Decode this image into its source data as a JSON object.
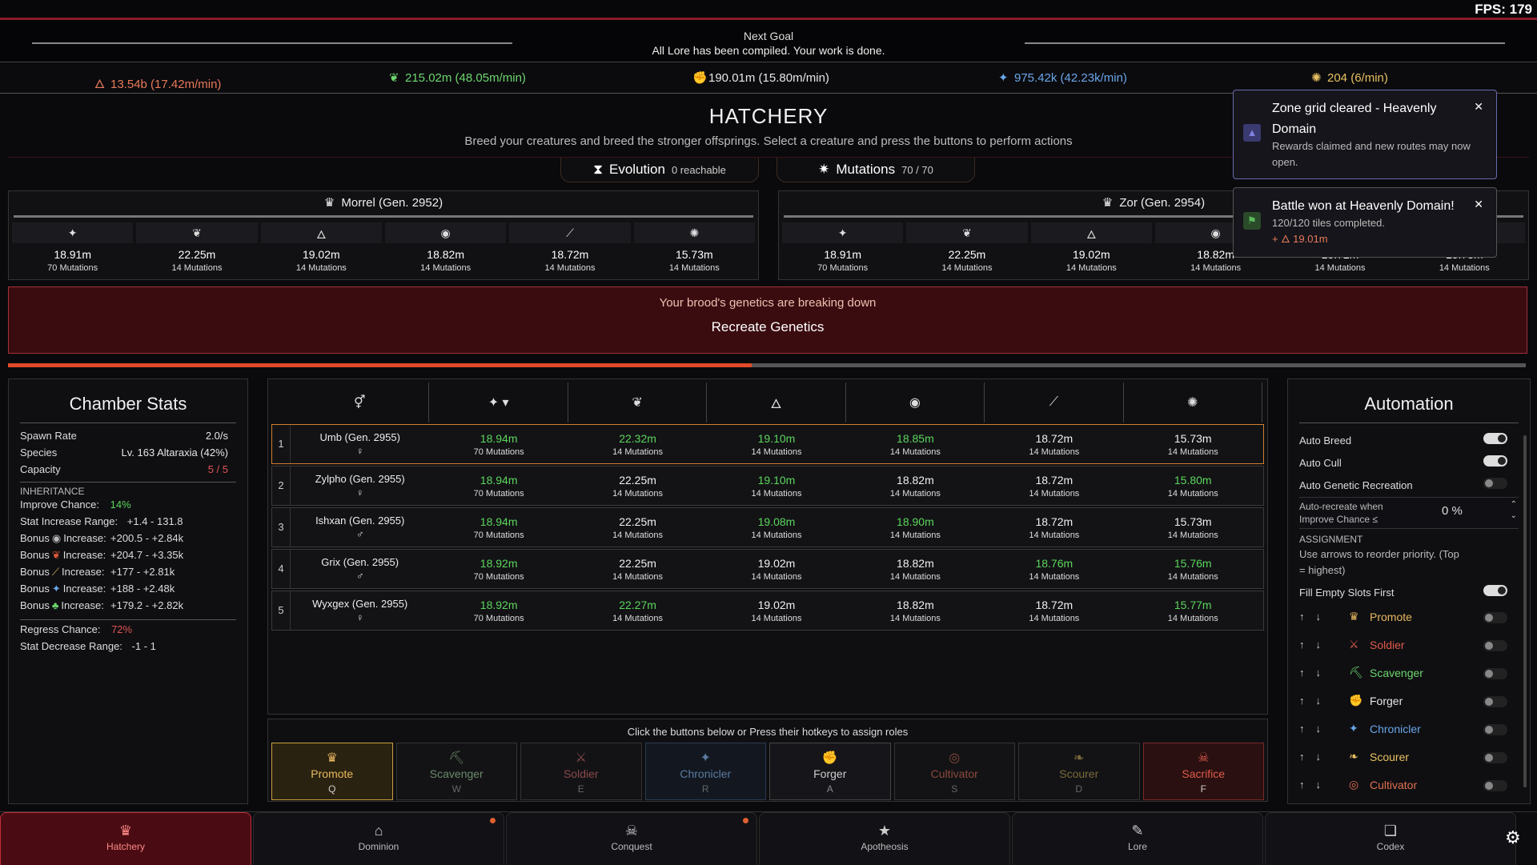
{
  "fps": "FPS: 179",
  "goal": {
    "label": "Next Goal",
    "text": "All Lore has been compiled. Your work is done."
  },
  "resources": [
    {
      "icon": "flame-icon",
      "glyph": "🜂",
      "text": "13.54b (17.42m/min)",
      "color": "#e87a5a"
    },
    {
      "icon": "leaf-icon",
      "glyph": "❦",
      "text": "215.02m (48.05m/min)",
      "color": "#6ed66e"
    },
    {
      "icon": "fist-icon",
      "glyph": "✊",
      "text": "190.01m (15.80m/min)",
      "color": "#e6e6e6"
    },
    {
      "icon": "scroll-icon",
      "glyph": "✦",
      "text": "975.42k (42.23k/min)",
      "color": "#6aa6e8"
    },
    {
      "icon": "gear-coin-icon",
      "glyph": "✺",
      "text": "204 (6/min)",
      "color": "#e8c060"
    }
  ],
  "hatchery": {
    "title": "HATCHERY",
    "subtitle": "Breed your creatures and breed the stronger offsprings. Select a creature and press the buttons to perform actions"
  },
  "tabs": [
    {
      "label": "Evolution",
      "sub": "0 reachable"
    },
    {
      "label": "Mutations",
      "sub": "70 / 70"
    }
  ],
  "parents": [
    {
      "name": "Morrel (Gen. 2952)",
      "stats": [
        {
          "icon": "sparkle-icon",
          "v": "18.91m",
          "m": "70 Mutations"
        },
        {
          "icon": "wings-icon",
          "v": "22.25m",
          "m": "14 Mutations"
        },
        {
          "icon": "flame-icon",
          "v": "19.02m",
          "m": "14 Mutations"
        },
        {
          "icon": "shell-icon",
          "v": "18.82m",
          "m": "14 Mutations"
        },
        {
          "icon": "claw-icon",
          "v": "18.72m",
          "m": "14 Mutations"
        },
        {
          "icon": "brain-icon",
          "v": "15.73m",
          "m": "14 Mutations"
        }
      ]
    },
    {
      "name": "Zor (Gen. 2954)",
      "stats": [
        {
          "icon": "sparkle-icon",
          "v": "18.91m",
          "m": "70 Mutations"
        },
        {
          "icon": "wings-icon",
          "v": "22.25m",
          "m": "14 Mutations"
        },
        {
          "icon": "flame-icon",
          "v": "19.02m",
          "m": "14 Mutations"
        },
        {
          "icon": "shell-icon",
          "v": "18.82m",
          "m": "14 Mutations"
        },
        {
          "icon": "claw-icon",
          "v": "18.72m",
          "m": "14 Mutations"
        },
        {
          "icon": "brain-icon",
          "v": "15.73m",
          "m": "14 Mutations"
        }
      ]
    }
  ],
  "alert": {
    "text": "Your brood's genetics are breaking down",
    "button": "Recreate Genetics"
  },
  "breed_progress": 0.49,
  "chamber": {
    "title": "Chamber Stats",
    "rows": [
      {
        "l": "Spawn Rate",
        "r": "2.0/s",
        "color": "#e6e6e6"
      },
      {
        "l": "Species",
        "r": "Lv. 163 Altaraxia (42%)",
        "color": "#e6e6e6"
      },
      {
        "l": "Capacity",
        "r": "5 / 5",
        "color": "#e05555"
      }
    ],
    "inheritance_label": "INHERITANCE",
    "improve": {
      "l": "Improve Chance:",
      "r": "14%"
    },
    "stat_inc": {
      "l": "Stat Increase Range:",
      "r": "+1.4 - 131.8"
    },
    "bonuses": [
      {
        "l": "Bonus",
        "icon": "shell-icon",
        "glyph": "◉",
        "l2": "Increase:",
        "r": "+200.5 - +2.84k",
        "color": "#bbb"
      },
      {
        "l": "Bonus",
        "icon": "wings-icon",
        "glyph": "❦",
        "l2": "Increase:",
        "r": "+204.7 - +3.35k",
        "color": "#e05a3a"
      },
      {
        "l": "Bonus",
        "icon": "claw-icon",
        "glyph": "⟋",
        "l2": "Increase:",
        "r": "+177 - +2.81k",
        "color": "#e0b060"
      },
      {
        "l": "Bonus",
        "icon": "scroll-icon",
        "glyph": "✦",
        "l2": "Increase:",
        "r": "+188 - +2.48k",
        "color": "#6aa6e8"
      },
      {
        "l": "Bonus",
        "icon": "sprout-icon",
        "glyph": "♣",
        "l2": "Increase:",
        "r": "+179.2 - +2.82k",
        "color": "#6ed66e"
      }
    ],
    "regress": {
      "l": "Regress Chance:",
      "r": "72%"
    },
    "stat_dec": {
      "l": "Stat Decrease Range:",
      "r": "-1 - 1"
    }
  },
  "table": {
    "headers": [
      {
        "icon": "gender-icon",
        "glyph": "⚥"
      },
      {
        "icon": "sparkle-icon",
        "glyph": "✦ ▾"
      },
      {
        "icon": "wings-icon",
        "glyph": "❦"
      },
      {
        "icon": "flame-icon",
        "glyph": "🜂"
      },
      {
        "icon": "shell-icon",
        "glyph": "◉"
      },
      {
        "icon": "claw-icon",
        "glyph": "⟋"
      },
      {
        "icon": "brain-icon",
        "glyph": "✺"
      }
    ],
    "rows": [
      {
        "idx": "1",
        "name": "Umb (Gen. 2955)",
        "sex": "♀",
        "cells": [
          {
            "v": "18.94m",
            "m": "70 Mutations",
            "g": true
          },
          {
            "v": "22.32m",
            "m": "14 Mutations",
            "g": true
          },
          {
            "v": "19.10m",
            "m": "14 Mutations",
            "g": true
          },
          {
            "v": "18.85m",
            "m": "14 Mutations",
            "g": true
          },
          {
            "v": "18.72m",
            "m": "14 Mutations",
            "g": false
          },
          {
            "v": "15.73m",
            "m": "14 Mutations",
            "g": false
          }
        ]
      },
      {
        "idx": "2",
        "name": "Zylpho (Gen. 2955)",
        "sex": "♀",
        "cells": [
          {
            "v": "18.94m",
            "m": "70 Mutations",
            "g": true
          },
          {
            "v": "22.25m",
            "m": "14 Mutations",
            "g": false
          },
          {
            "v": "19.10m",
            "m": "14 Mutations",
            "g": true
          },
          {
            "v": "18.82m",
            "m": "14 Mutations",
            "g": false
          },
          {
            "v": "18.72m",
            "m": "14 Mutations",
            "g": false
          },
          {
            "v": "15.80m",
            "m": "14 Mutations",
            "g": true
          }
        ]
      },
      {
        "idx": "3",
        "name": "Ishxan (Gen. 2955)",
        "sex": "♂",
        "cells": [
          {
            "v": "18.94m",
            "m": "70 Mutations",
            "g": true
          },
          {
            "v": "22.25m",
            "m": "14 Mutations",
            "g": false
          },
          {
            "v": "19.08m",
            "m": "14 Mutations",
            "g": true
          },
          {
            "v": "18.90m",
            "m": "14 Mutations",
            "g": true
          },
          {
            "v": "18.72m",
            "m": "14 Mutations",
            "g": false
          },
          {
            "v": "15.73m",
            "m": "14 Mutations",
            "g": false
          }
        ]
      },
      {
        "idx": "4",
        "name": "Grix (Gen. 2955)",
        "sex": "♂",
        "cells": [
          {
            "v": "18.92m",
            "m": "70 Mutations",
            "g": true
          },
          {
            "v": "22.25m",
            "m": "14 Mutations",
            "g": false
          },
          {
            "v": "19.02m",
            "m": "14 Mutations",
            "g": false
          },
          {
            "v": "18.82m",
            "m": "14 Mutations",
            "g": false
          },
          {
            "v": "18.76m",
            "m": "14 Mutations",
            "g": true
          },
          {
            "v": "15.76m",
            "m": "14 Mutations",
            "g": true
          }
        ]
      },
      {
        "idx": "5",
        "name": "Wyxgex (Gen. 2955)",
        "sex": "♀",
        "cells": [
          {
            "v": "18.92m",
            "m": "70 Mutations",
            "g": true
          },
          {
            "v": "22.27m",
            "m": "14 Mutations",
            "g": true
          },
          {
            "v": "19.02m",
            "m": "14 Mutations",
            "g": false
          },
          {
            "v": "18.82m",
            "m": "14 Mutations",
            "g": false
          },
          {
            "v": "18.72m",
            "m": "14 Mutations",
            "g": false
          },
          {
            "v": "15.77m",
            "m": "14 Mutations",
            "g": true
          }
        ]
      }
    ]
  },
  "roles": {
    "hint": "Click the buttons below or Press their hotkeys to assign roles",
    "buttons": [
      {
        "label": "Promote",
        "key": "Q",
        "icon": "crown-icon",
        "glyph": "♛",
        "color": "#e8b860",
        "border": "#c8a040",
        "bg": "#2a2210",
        "kc": "#ccc"
      },
      {
        "label": "Scavenger",
        "key": "W",
        "icon": "pickaxe-icon",
        "glyph": "⛏",
        "color": "#6a8a6a",
        "border": "#333",
        "bg": "#131316",
        "kc": "#666"
      },
      {
        "label": "Soldier",
        "key": "E",
        "icon": "swords-icon",
        "glyph": "⚔",
        "color": "#8a4a4a",
        "border": "#333",
        "bg": "#131316",
        "kc": "#666"
      },
      {
        "label": "Chronicler",
        "key": "R",
        "icon": "scroll-icon",
        "glyph": "✦",
        "color": "#5a7aa0",
        "border": "#2a3a50",
        "bg": "#131820",
        "kc": "#666"
      },
      {
        "label": "Forger",
        "key": "A",
        "icon": "fist-icon",
        "glyph": "✊",
        "color": "#cccccc",
        "border": "#444",
        "bg": "#16161a",
        "kc": "#888"
      },
      {
        "label": "Cultivator",
        "key": "S",
        "icon": "eye-icon",
        "glyph": "◎",
        "color": "#8a4a3a",
        "border": "#333",
        "bg": "#131316",
        "kc": "#666"
      },
      {
        "label": "Scourer",
        "key": "D",
        "icon": "feather-icon",
        "glyph": "❧",
        "color": "#7a6a3a",
        "border": "#333",
        "bg": "#131316",
        "kc": "#666"
      },
      {
        "label": "Sacrifice",
        "key": "F",
        "icon": "skull-icon",
        "glyph": "☠",
        "color": "#e05a4a",
        "border": "#7a2a26",
        "bg": "#2a1010",
        "kc": "#ccc"
      }
    ]
  },
  "automation": {
    "title": "Automation",
    "toggles": [
      {
        "label": "Auto Breed",
        "on": true
      },
      {
        "label": "Auto Cull",
        "on": true
      },
      {
        "label": "Auto Genetic Recreation",
        "on": false
      }
    ],
    "recreate_label": "Auto-recreate when Improve Chance ≤",
    "recreate_value": "0 %",
    "assignment_label": "ASSIGNMENT",
    "assignment_hint": "Use arrows to reorder priority. (Top = highest)",
    "fill_label": "Fill Empty Slots First",
    "slots": [
      {
        "label": "Promote",
        "icon": "crown-icon",
        "glyph": "♛",
        "color": "#e8b860"
      },
      {
        "label": "Soldier",
        "icon": "swords-icon",
        "glyph": "⚔",
        "color": "#e05a4a"
      },
      {
        "label": "Scavenger",
        "icon": "pickaxe-icon",
        "glyph": "⛏",
        "color": "#6ed66e"
      },
      {
        "label": "Forger",
        "icon": "fist-icon",
        "glyph": "✊",
        "color": "#e6e6e6"
      },
      {
        "label": "Chronicler",
        "icon": "scroll-icon",
        "glyph": "✦",
        "color": "#6aa6e8"
      },
      {
        "label": "Scourer",
        "icon": "feather-icon",
        "glyph": "❧",
        "color": "#e8c060"
      },
      {
        "label": "Cultivator",
        "icon": "eye-icon",
        "glyph": "◎",
        "color": "#e07050"
      }
    ]
  },
  "toasts": [
    {
      "title": "Zone grid cleared - Heavenly Domain",
      "body": "Rewards claimed and new routes may now open.",
      "icon": "mountain-icon",
      "glyph": "▲",
      "color": "#8080e0"
    },
    {
      "title": "Battle won at Heavenly Domain!",
      "body": "120/120 tiles completed.",
      "reward": "+ 🜂 19.01m",
      "icon": "flag-icon",
      "glyph": "⚑",
      "color": "#5cbc5c"
    }
  ],
  "nav": [
    {
      "label": "Hatchery",
      "icon": "crown-icon",
      "glyph": "♛",
      "active": true,
      "dot": false
    },
    {
      "label": "Dominion",
      "icon": "home-icon",
      "glyph": "⌂",
      "active": false,
      "dot": true
    },
    {
      "label": "Conquest",
      "icon": "skull-icon",
      "glyph": "☠",
      "active": false,
      "dot": true
    },
    {
      "label": "Apotheosis",
      "icon": "star-icon",
      "glyph": "★",
      "active": false,
      "dot": false
    },
    {
      "label": "Lore",
      "icon": "scroll-icon",
      "glyph": "✎",
      "active": false,
      "dot": false
    },
    {
      "label": "Codex",
      "icon": "book-icon",
      "glyph": "❏",
      "active": false,
      "dot": false
    }
  ]
}
